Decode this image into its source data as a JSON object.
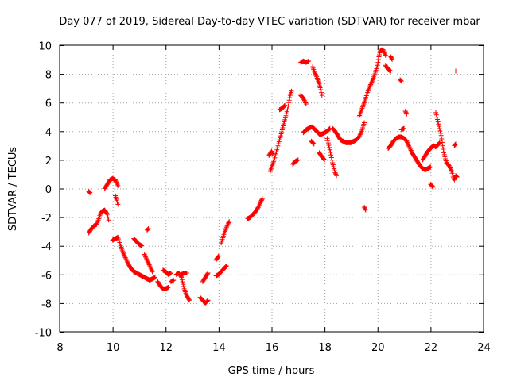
{
  "chart_data": {
    "type": "scatter",
    "title": "Day 077 of 2019, Sidereal Day-to-day VTEC variation (SDTVAR) for receiver mbar",
    "xlabel": "GPS time / hours",
    "ylabel": "SDTVAR / TECUs",
    "xlim": [
      8,
      24
    ],
    "ylim": [
      -10,
      10
    ],
    "x_ticks": [
      8,
      10,
      12,
      14,
      16,
      18,
      20,
      22,
      24
    ],
    "y_ticks": [
      -10,
      -8,
      -6,
      -4,
      -2,
      0,
      2,
      4,
      6,
      8,
      10
    ],
    "grid": true,
    "marker": "+",
    "color": "#ff0000",
    "series": [
      {
        "name": "SDTVAR",
        "segments": [
          [
            [
              9.1,
              -0.2
            ],
            [
              9.15,
              -0.3
            ]
          ],
          [
            [
              9.1,
              -3.1
            ],
            [
              9.2,
              -2.8
            ],
            [
              9.3,
              -2.6
            ],
            [
              9.4,
              -2.5
            ],
            [
              9.5,
              -2.0
            ],
            [
              9.55,
              -1.7
            ],
            [
              9.6,
              -1.6
            ],
            [
              9.7,
              -1.5
            ],
            [
              9.8,
              -1.8
            ],
            [
              9.85,
              -2.2
            ]
          ],
          [
            [
              9.7,
              0.0
            ],
            [
              9.8,
              0.3
            ],
            [
              9.9,
              0.6
            ],
            [
              10.0,
              0.7
            ],
            [
              10.1,
              0.6
            ],
            [
              10.15,
              0.4
            ],
            [
              10.2,
              0.2
            ]
          ],
          [
            [
              10.1,
              -0.5
            ],
            [
              10.15,
              -0.8
            ],
            [
              10.2,
              -1.1
            ]
          ],
          [
            [
              10.0,
              -3.6
            ],
            [
              10.2,
              -3.4
            ],
            [
              10.3,
              -4.0
            ],
            [
              10.4,
              -4.5
            ],
            [
              10.5,
              -4.9
            ],
            [
              10.6,
              -5.3
            ],
            [
              10.7,
              -5.6
            ],
            [
              10.8,
              -5.8
            ],
            [
              10.9,
              -5.9
            ],
            [
              11.0,
              -6.0
            ],
            [
              11.1,
              -6.1
            ],
            [
              11.2,
              -6.2
            ],
            [
              11.3,
              -6.3
            ],
            [
              11.4,
              -6.4
            ],
            [
              11.5,
              -6.3
            ],
            [
              11.6,
              -6.2
            ]
          ],
          [
            [
              10.8,
              -3.5
            ],
            [
              10.9,
              -3.7
            ],
            [
              11.0,
              -3.9
            ],
            [
              11.1,
              -4.0
            ]
          ],
          [
            [
              11.3,
              -2.9
            ],
            [
              11.35,
              -2.8
            ]
          ],
          [
            [
              11.2,
              -4.6
            ],
            [
              11.3,
              -5.0
            ],
            [
              11.4,
              -5.4
            ],
            [
              11.5,
              -5.8
            ]
          ],
          [
            [
              11.7,
              -6.5
            ],
            [
              11.8,
              -6.8
            ],
            [
              11.9,
              -7.0
            ],
            [
              12.0,
              -7.0
            ],
            [
              12.1,
              -6.9
            ]
          ],
          [
            [
              11.9,
              -5.7
            ],
            [
              12.0,
              -5.8
            ],
            [
              12.1,
              -6.0
            ],
            [
              12.2,
              -5.9
            ]
          ],
          [
            [
              12.2,
              -6.5
            ],
            [
              12.3,
              -6.4
            ]
          ],
          [
            [
              12.4,
              -6.0
            ],
            [
              12.5,
              -5.9
            ],
            [
              12.6,
              -6.2
            ],
            [
              12.7,
              -7.0
            ],
            [
              12.8,
              -7.5
            ],
            [
              12.9,
              -7.8
            ]
          ],
          [
            [
              12.6,
              -6.0
            ],
            [
              12.7,
              -5.9
            ],
            [
              12.8,
              -5.9
            ]
          ],
          [
            [
              13.3,
              -7.6
            ],
            [
              13.4,
              -7.8
            ],
            [
              13.5,
              -8.0
            ],
            [
              13.6,
              -7.8
            ]
          ],
          [
            [
              13.4,
              -6.5
            ],
            [
              13.6,
              -5.9
            ]
          ],
          [
            [
              13.9,
              -6.1
            ],
            [
              14.0,
              -6.0
            ],
            [
              14.1,
              -5.8
            ],
            [
              14.2,
              -5.6
            ],
            [
              14.3,
              -5.4
            ]
          ],
          [
            [
              13.9,
              -5.0
            ],
            [
              14.0,
              -4.7
            ]
          ],
          [
            [
              14.1,
              -3.8
            ],
            [
              14.2,
              -3.2
            ],
            [
              14.3,
              -2.7
            ],
            [
              14.4,
              -2.3
            ]
          ],
          [
            [
              15.1,
              -2.1
            ],
            [
              15.2,
              -2.0
            ],
            [
              15.3,
              -1.8
            ],
            [
              15.4,
              -1.6
            ],
            [
              15.5,
              -1.3
            ],
            [
              15.6,
              -0.9
            ],
            [
              15.65,
              -0.7
            ]
          ],
          [
            [
              15.9,
              2.3
            ],
            [
              16.0,
              2.6
            ],
            [
              16.05,
              2.4
            ]
          ],
          [
            [
              15.95,
              1.2
            ],
            [
              16.0,
              1.5
            ],
            [
              16.1,
              2.0
            ],
            [
              16.2,
              2.7
            ],
            [
              16.3,
              3.4
            ],
            [
              16.4,
              4.1
            ],
            [
              16.5,
              4.8
            ],
            [
              16.6,
              5.5
            ],
            [
              16.65,
              6.0
            ],
            [
              16.7,
              6.5
            ],
            [
              16.75,
              6.8
            ]
          ],
          [
            [
              16.3,
              5.5
            ],
            [
              16.4,
              5.6
            ],
            [
              16.5,
              5.8
            ]
          ],
          [
            [
              16.8,
              1.7
            ],
            [
              16.9,
              1.9
            ],
            [
              17.0,
              2.0
            ]
          ],
          [
            [
              17.1,
              6.5
            ],
            [
              17.2,
              6.3
            ],
            [
              17.3,
              5.9
            ]
          ],
          [
            [
              17.1,
              8.8
            ],
            [
              17.2,
              8.9
            ],
            [
              17.3,
              8.8
            ],
            [
              17.4,
              8.9
            ]
          ],
          [
            [
              17.2,
              3.9
            ],
            [
              17.3,
              4.1
            ],
            [
              17.4,
              4.2
            ],
            [
              17.5,
              4.3
            ],
            [
              17.6,
              4.2
            ],
            [
              17.7,
              4.0
            ],
            [
              17.8,
              3.8
            ],
            [
              17.9,
              3.8
            ],
            [
              18.0,
              3.9
            ],
            [
              18.1,
              4.0
            ],
            [
              18.2,
              4.2
            ]
          ],
          [
            [
              17.5,
              3.3
            ],
            [
              17.6,
              3.1
            ]
          ],
          [
            [
              17.55,
              8.5
            ],
            [
              17.6,
              8.2
            ],
            [
              17.7,
              7.8
            ],
            [
              17.8,
              7.3
            ],
            [
              17.85,
              6.9
            ],
            [
              17.9,
              6.5
            ]
          ],
          [
            [
              17.8,
              2.5
            ],
            [
              17.9,
              2.2
            ],
            [
              18.0,
              2.0
            ]
          ],
          [
            [
              18.1,
              3.5
            ],
            [
              18.2,
              2.7
            ],
            [
              18.3,
              1.8
            ],
            [
              18.4,
              1.1
            ],
            [
              18.45,
              0.9
            ]
          ],
          [
            [
              18.3,
              4.2
            ],
            [
              18.4,
              4.0
            ],
            [
              18.5,
              3.7
            ],
            [
              18.6,
              3.4
            ],
            [
              18.7,
              3.3
            ],
            [
              18.8,
              3.2
            ],
            [
              18.9,
              3.2
            ],
            [
              19.0,
              3.2
            ],
            [
              19.1,
              3.3
            ],
            [
              19.2,
              3.4
            ],
            [
              19.3,
              3.6
            ],
            [
              19.4,
              4.0
            ],
            [
              19.5,
              4.6
            ]
          ],
          [
            [
              19.3,
              5.0
            ],
            [
              19.4,
              5.5
            ],
            [
              19.5,
              6.0
            ],
            [
              19.6,
              6.6
            ],
            [
              19.7,
              7.1
            ],
            [
              19.8,
              7.5
            ],
            [
              19.9,
              8.0
            ],
            [
              20.0,
              8.6
            ],
            [
              20.05,
              9.2
            ],
            [
              20.1,
              9.6
            ],
            [
              20.2,
              9.7
            ],
            [
              20.3,
              9.3
            ]
          ],
          [
            [
              19.5,
              -1.3
            ],
            [
              19.55,
              -1.5
            ]
          ],
          [
            [
              20.3,
              8.6
            ],
            [
              20.4,
              8.3
            ],
            [
              20.5,
              8.2
            ]
          ],
          [
            [
              20.5,
              9.2
            ],
            [
              20.55,
              9.0
            ]
          ],
          [
            [
              20.85,
              7.6
            ],
            [
              20.9,
              7.5
            ]
          ],
          [
            [
              20.4,
              2.8
            ],
            [
              20.5,
              3.0
            ],
            [
              20.6,
              3.3
            ],
            [
              20.7,
              3.5
            ],
            [
              20.8,
              3.6
            ],
            [
              20.9,
              3.6
            ],
            [
              21.0,
              3.5
            ],
            [
              21.1,
              3.3
            ],
            [
              21.2,
              2.9
            ],
            [
              21.3,
              2.5
            ],
            [
              21.4,
              2.2
            ],
            [
              21.5,
              1.9
            ],
            [
              21.6,
              1.6
            ],
            [
              21.7,
              1.4
            ],
            [
              21.8,
              1.3
            ],
            [
              21.9,
              1.4
            ],
            [
              22.0,
              1.5
            ]
          ],
          [
            [
              21.05,
              5.4
            ],
            [
              21.1,
              5.2
            ]
          ],
          [
            [
              20.9,
              4.1
            ],
            [
              21.0,
              4.2
            ]
          ],
          [
            [
              21.7,
              2.0
            ],
            [
              21.8,
              2.3
            ],
            [
              21.9,
              2.6
            ],
            [
              22.0,
              2.8
            ],
            [
              22.1,
              3.0
            ],
            [
              22.2,
              2.9
            ],
            [
              22.3,
              3.1
            ],
            [
              22.35,
              3.2
            ]
          ],
          [
            [
              22.0,
              0.3
            ],
            [
              22.1,
              0.1
            ]
          ],
          [
            [
              22.2,
              5.3
            ],
            [
              22.3,
              4.5
            ],
            [
              22.4,
              3.7
            ],
            [
              22.5,
              2.5
            ],
            [
              22.6,
              1.8
            ],
            [
              22.7,
              1.6
            ],
            [
              22.8,
              1.2
            ],
            [
              22.85,
              0.8
            ],
            [
              22.9,
              0.6
            ],
            [
              22.95,
              0.9
            ],
            [
              23.0,
              0.8
            ]
          ],
          [
            [
              22.9,
              3.0
            ],
            [
              22.95,
              3.1
            ]
          ],
          [
            [
              22.95,
              8.2
            ]
          ]
        ]
      }
    ]
  }
}
